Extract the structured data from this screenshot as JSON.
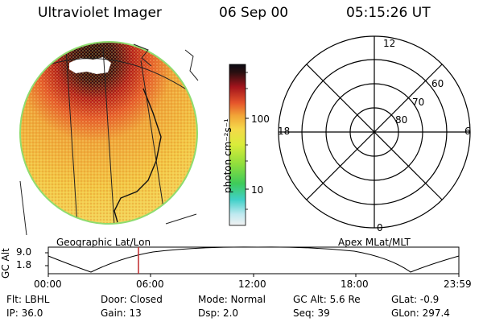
{
  "header": {
    "instrument": "Ultraviolet Imager",
    "date": "06 Sep 00",
    "time": "05:15:26 UT"
  },
  "colors": {
    "image_base": "#f3c744",
    "image_warm": "#f0a53a",
    "image_hot": "#c9231b",
    "image_dark": "#2a0f10",
    "image_edge": "#8fdc6f"
  },
  "colorbar": {
    "unit_label": "photon cm⁻²s⁻¹",
    "ticks": [
      "100",
      "10"
    ]
  },
  "polar_plot": {
    "mlt_labels": {
      "top": "12",
      "left": "18",
      "right": "6",
      "bottom": "0"
    },
    "mlat_labels": [
      "60",
      "70",
      "80"
    ]
  },
  "captions": {
    "left": "Geographic Lat/Lon",
    "right": "Apex MLat/MLT"
  },
  "timeline": {
    "axis_title": "GC Alt",
    "y_ticks": [
      "9.0",
      "1.8"
    ],
    "x_ticks": [
      "00:00",
      "06:00",
      "12:00",
      "18:00",
      "23:59"
    ],
    "current_time_marker": "05:15"
  },
  "info": {
    "flt": "Flt: LBHL",
    "door": "Door: Closed",
    "mode": "Mode: Normal",
    "gcalt": "GC Alt: 5.6 Re",
    "glat": "GLat:  -0.9",
    "ip": "IP: 36.0",
    "gain": "Gain: 13",
    "dsp": "Dsp:     2.0",
    "seq": "Seq: 39",
    "glon": "GLon: 297.4"
  }
}
